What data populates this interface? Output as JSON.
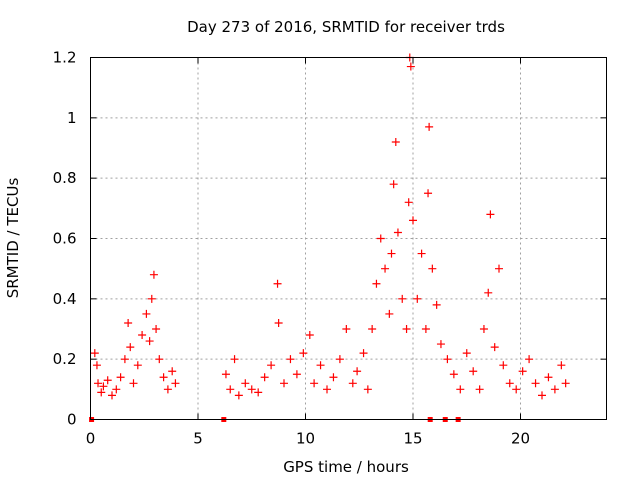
{
  "chart_data": {
    "type": "scatter",
    "title": "Day 273 of 2016, SRMTID for receiver trds",
    "xlabel": "GPS time / hours",
    "ylabel": "SRMTID / TECUs",
    "xlim": [
      0,
      24
    ],
    "ylim": [
      0,
      1.2
    ],
    "xticks": [
      0,
      5,
      10,
      15,
      20
    ],
    "yticks": [
      0,
      0.2,
      0.4,
      0.6,
      0.8,
      1,
      1.2
    ],
    "xtick_labels": [
      "0",
      "5",
      "10",
      "15",
      "20"
    ],
    "ytick_labels": [
      "0",
      "0.2",
      "0.4",
      "0.6",
      "0.8",
      "1",
      "1.2"
    ],
    "grid": true,
    "marker": "+",
    "color": "#ff0000",
    "series": [
      {
        "name": "SRMTID",
        "x": [
          0.2,
          0.3,
          0.35,
          0.5,
          0.6,
          0.8,
          1.0,
          1.2,
          1.4,
          1.6,
          1.75,
          1.85,
          2.0,
          2.2,
          2.4,
          2.6,
          2.75,
          2.85,
          2.95,
          3.05,
          3.2,
          3.4,
          3.6,
          3.8,
          3.95,
          6.3,
          6.5,
          6.7,
          6.9,
          7.2,
          7.5,
          7.8,
          8.1,
          8.4,
          8.7,
          8.75,
          9.0,
          9.3,
          9.6,
          9.9,
          10.2,
          10.4,
          10.7,
          11.0,
          11.3,
          11.6,
          11.9,
          12.2,
          12.4,
          12.7,
          12.9,
          13.1,
          13.3,
          13.5,
          13.7,
          13.9,
          14.0,
          14.1,
          14.2,
          14.3,
          14.5,
          14.7,
          14.8,
          14.85,
          14.9,
          15.0,
          15.2,
          15.4,
          15.6,
          15.7,
          15.75,
          15.9,
          16.1,
          16.3,
          16.6,
          16.9,
          17.2,
          17.5,
          17.8,
          18.1,
          18.3,
          18.5,
          18.6,
          18.8,
          19.0,
          19.2,
          19.5,
          19.8,
          20.1,
          20.4,
          20.7,
          21.0,
          21.3,
          21.6,
          21.9,
          22.1
        ],
        "y": [
          0.22,
          0.18,
          0.12,
          0.09,
          0.11,
          0.13,
          0.08,
          0.1,
          0.14,
          0.2,
          0.32,
          0.24,
          0.12,
          0.18,
          0.28,
          0.35,
          0.26,
          0.4,
          0.48,
          0.3,
          0.2,
          0.14,
          0.1,
          0.16,
          0.12,
          0.15,
          0.1,
          0.2,
          0.08,
          0.12,
          0.1,
          0.09,
          0.14,
          0.18,
          0.45,
          0.32,
          0.12,
          0.2,
          0.15,
          0.22,
          0.28,
          0.12,
          0.18,
          0.1,
          0.14,
          0.2,
          0.3,
          0.12,
          0.16,
          0.22,
          0.1,
          0.3,
          0.45,
          0.6,
          0.5,
          0.35,
          0.55,
          0.78,
          0.92,
          0.62,
          0.4,
          0.3,
          0.72,
          1.2,
          1.17,
          0.66,
          0.4,
          0.55,
          0.3,
          0.75,
          0.97,
          0.5,
          0.38,
          0.25,
          0.2,
          0.15,
          0.1,
          0.22,
          0.16,
          0.1,
          0.3,
          0.42,
          0.68,
          0.24,
          0.5,
          0.18,
          0.12,
          0.1,
          0.16,
          0.2,
          0.12,
          0.08,
          0.14,
          0.1,
          0.18,
          0.12
        ]
      }
    ],
    "zero_markers_x": [
      0.05,
      6.2,
      15.8,
      16.5,
      17.1
    ]
  }
}
